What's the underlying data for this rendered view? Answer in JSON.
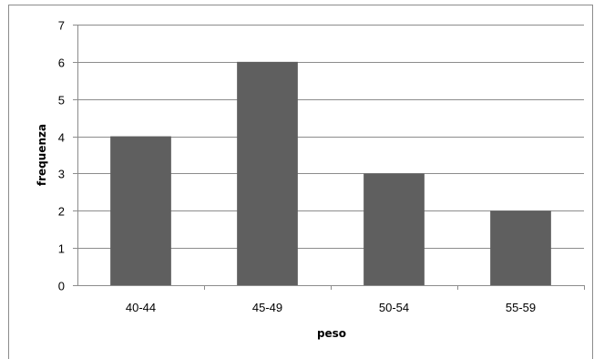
{
  "chart_data": {
    "type": "bar",
    "title": "",
    "xlabel": "peso",
    "ylabel": "frequenza",
    "categories": [
      "40-44",
      "45-49",
      "50-54",
      "55-59"
    ],
    "values": [
      4,
      6,
      3,
      2
    ],
    "ylim": [
      0,
      7
    ],
    "yticks": [
      "0",
      "1",
      "2",
      "3",
      "4",
      "5",
      "6",
      "7"
    ],
    "grid": true,
    "legend": "none",
    "bar_color": "#5f5f5f",
    "grid_color": "#8c8c8c"
  }
}
